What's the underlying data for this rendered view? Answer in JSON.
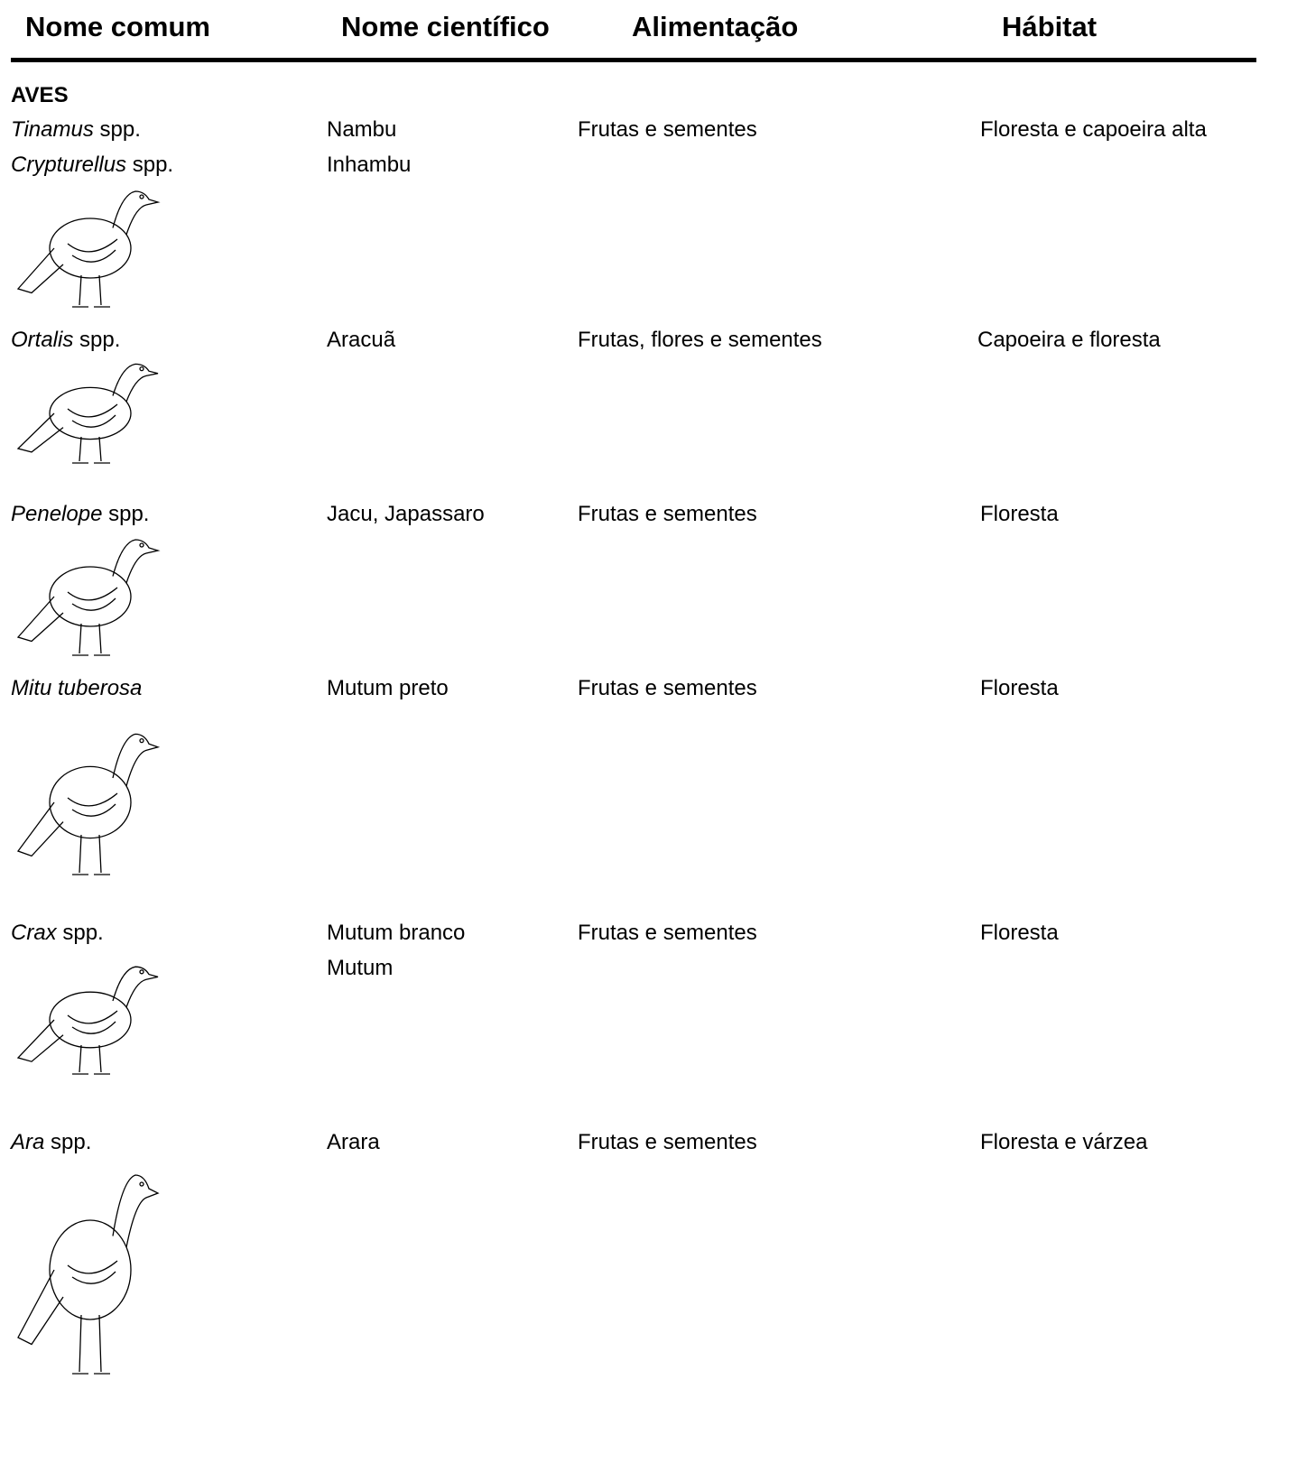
{
  "header": {
    "columns": [
      "Nome comum",
      "Nome científico",
      "Alimentação",
      "Hábitat"
    ]
  },
  "section": "AVES",
  "rows": [
    {
      "scientific": [
        {
          "italic": "Tinamus",
          "rest": "spp."
        },
        {
          "italic": "Crypturellus",
          "rest": "spp."
        }
      ],
      "common": [
        "Nambu",
        "Inhambu"
      ],
      "food": "Frutas e sementes",
      "habitat": "Floresta e capoeira alta"
    },
    {
      "scientific": [
        {
          "italic": "Ortalis",
          "rest": "spp."
        }
      ],
      "common": [
        "Aracuã"
      ],
      "food": "Frutas, flores e sementes",
      "habitat": "Capoeira e floresta"
    },
    {
      "scientific": [
        {
          "italic": "Penelope",
          "rest": "spp."
        }
      ],
      "common": [
        "Jacu, Japassaro"
      ],
      "food": "Frutas e sementes",
      "habitat": "Floresta"
    },
    {
      "scientific": [
        {
          "italic": "Mitu tuberosa"
        }
      ],
      "common": [
        "Mutum preto"
      ],
      "food": "Frutas e sementes",
      "habitat": "Floresta"
    },
    {
      "scientific": [
        {
          "italic": "Crax",
          "rest": "spp."
        }
      ],
      "common": [
        "Mutum branco",
        "Mutum"
      ],
      "food": "Frutas e sementes",
      "habitat": "Floresta"
    },
    {
      "scientific": [
        {
          "italic": "Ara",
          "rest": "spp."
        }
      ],
      "common": [
        "Arara"
      ],
      "food": "Frutas e sementes",
      "habitat": "Floresta e várzea"
    }
  ]
}
